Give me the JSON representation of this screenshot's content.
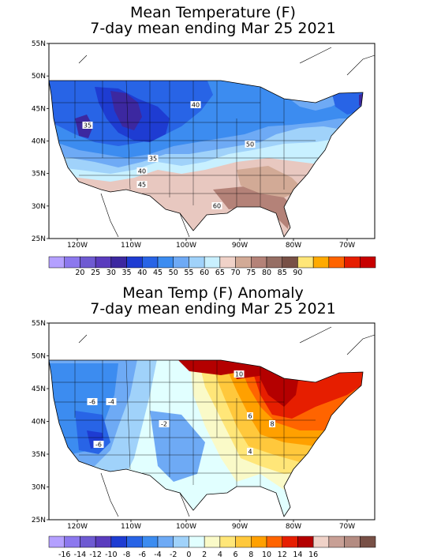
{
  "maps": [
    {
      "title1": "Mean Temperature (F)",
      "title2": "7-day mean ending Mar 25 2021",
      "lat_labels": [
        "55N",
        "50N",
        "45N",
        "40N",
        "35N",
        "30N",
        "25N"
      ],
      "lon_labels": [
        "120W",
        "110W",
        "100W",
        "90W",
        "80W",
        "70W"
      ],
      "contour_labels": [
        "35",
        "40",
        "50",
        "35",
        "40",
        "45",
        "60"
      ],
      "colorbar": {
        "colors": [
          "#b4a0ff",
          "#8c78ee",
          "#6e5ad2",
          "#5a3cbe",
          "#3c28a0",
          "#1e3cd2",
          "#2864e6",
          "#3c8cf0",
          "#6eaaf5",
          "#a0d2fa",
          "#c8f0ff",
          "#f0d2c8",
          "#d2aa96",
          "#b48278",
          "#966e64",
          "#785046",
          "#ffe678",
          "#ffaa00",
          "#ff6400",
          "#e61e00",
          "#c80000"
        ],
        "labels": [
          "20",
          "25",
          "30",
          "35",
          "40",
          "45",
          "50",
          "55",
          "60",
          "65",
          "70",
          "75",
          "80",
          "85",
          "90"
        ]
      }
    },
    {
      "title1": "Mean Temp (F) Anomaly",
      "title2": "7-day mean ending Mar 25 2021",
      "lat_labels": [
        "55N",
        "50N",
        "45N",
        "40N",
        "35N",
        "30N",
        "25N"
      ],
      "lon_labels": [
        "120W",
        "110W",
        "100W",
        "90W",
        "80W",
        "70W"
      ],
      "contour_labels": [
        "-6",
        "-4",
        "-2",
        "-6",
        "10",
        "6",
        "8",
        "4"
      ],
      "colorbar": {
        "colors": [
          "#b4a0ff",
          "#8c78ee",
          "#6e5ad2",
          "#5a3cbe",
          "#1e3cd2",
          "#2864e6",
          "#3c8cf0",
          "#6eaaf5",
          "#a0d2fa",
          "#e1ffff",
          "#fafac8",
          "#ffe678",
          "#ffc83c",
          "#ffa000",
          "#ff6400",
          "#e61e00",
          "#b40000",
          "#f0d2c8",
          "#c8a096",
          "#b48c82",
          "#785046"
        ],
        "labels": [
          "-16",
          "-14",
          "-12",
          "-10",
          "-8",
          "-6",
          "-4",
          "-2",
          "0",
          "2",
          "4",
          "6",
          "8",
          "10",
          "12",
          "14",
          "16"
        ]
      }
    }
  ]
}
